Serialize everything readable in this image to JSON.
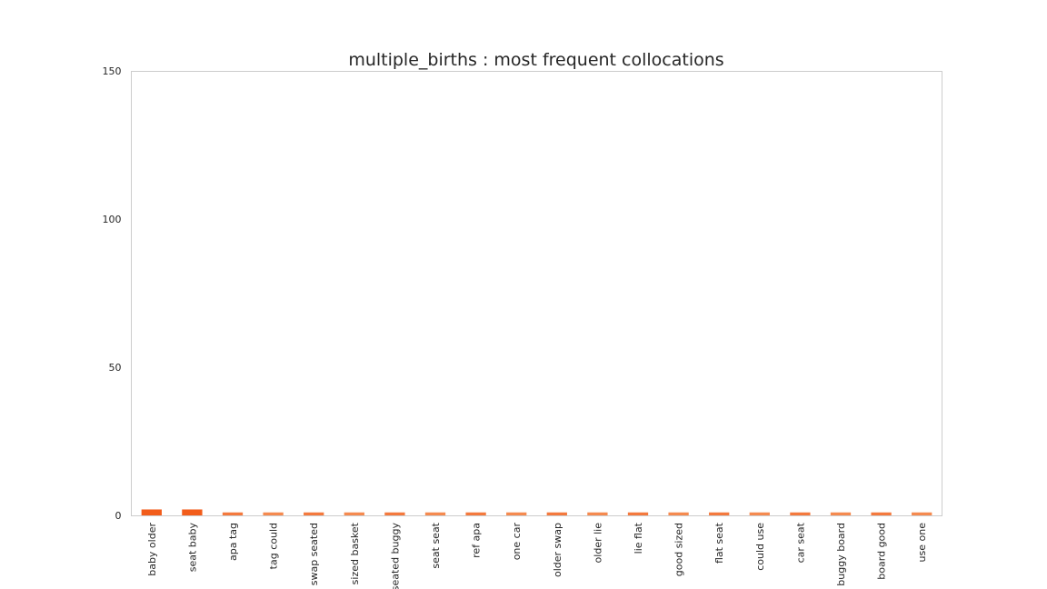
{
  "chart_data": {
    "type": "bar",
    "title": "multiple_births : most frequent collocations",
    "xlabel": "",
    "ylabel": "",
    "ylim": [
      0,
      150
    ],
    "yticks": [
      0,
      50,
      100,
      150
    ],
    "grid": false,
    "legend": "none",
    "categories": [
      "baby older",
      "seat baby",
      "apa tag",
      "tag could",
      "swap seated",
      "sized basket",
      "seated buggy",
      "seat seat",
      "ref apa",
      "one car",
      "older swap",
      "older lie",
      "lie flat",
      "good sized",
      "flat seat",
      "could use",
      "car seat",
      "buggy board",
      "board good",
      "use one"
    ],
    "values": [
      2,
      2,
      1,
      1,
      1,
      1,
      1,
      1,
      1,
      1,
      1,
      1,
      1,
      1,
      1,
      1,
      1,
      1,
      1,
      1
    ],
    "colors": {
      "bar_strong": "#f25c1a",
      "bar_mid": "#f4793d",
      "bar_light": "#f58a4f",
      "axes_frame": "#cccccc",
      "text": "#262626"
    }
  }
}
